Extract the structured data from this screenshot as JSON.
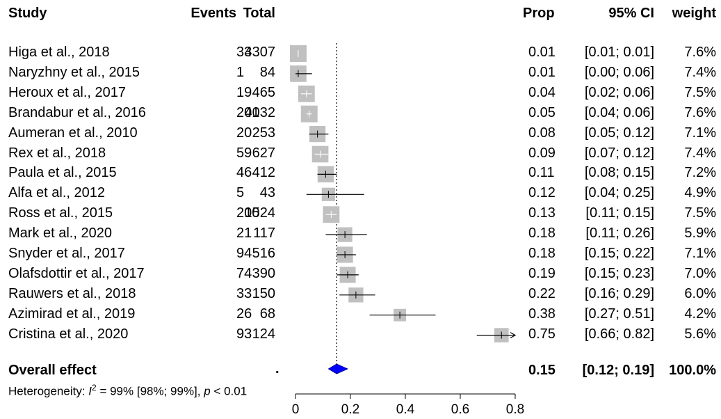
{
  "chart_data": {
    "type": "forest",
    "headers": {
      "study": "Study",
      "events": "Events",
      "total": "Total",
      "prop": "Prop",
      "ci": "95% CI",
      "weight": "weight"
    },
    "studies": [
      {
        "study": "Higa et al., 2018",
        "events": "33",
        "total": "4307",
        "prop_text": "0.01",
        "ci_text": "[0.01; 0.01]",
        "weight_text": "7.6%",
        "prop": 0.01,
        "lo": 0.01,
        "hi": 0.01,
        "weight": 7.6
      },
      {
        "study": "Naryzhny et al., 2015",
        "events": "1",
        "total": "84",
        "prop_text": "0.01",
        "ci_text": "[0.00; 0.06]",
        "weight_text": "7.4%",
        "prop": 0.01,
        "lo": 0.0,
        "hi": 0.06,
        "weight": 7.4
      },
      {
        "study": "Heroux et al., 2017",
        "events": "19",
        "total": "465",
        "prop_text": "0.04",
        "ci_text": "[0.02; 0.06]",
        "weight_text": "7.5%",
        "prop": 0.04,
        "lo": 0.02,
        "hi": 0.06,
        "weight": 7.5
      },
      {
        "study": "Brandabur et al., 2016",
        "events": "201",
        "total": "4032",
        "prop_text": "0.05",
        "ci_text": "[0.04; 0.06]",
        "weight_text": "7.6%",
        "prop": 0.05,
        "lo": 0.04,
        "hi": 0.06,
        "weight": 7.6
      },
      {
        "study": "Aumeran et al., 2010",
        "events": "20",
        "total": "253",
        "prop_text": "0.08",
        "ci_text": "[0.05; 0.12]",
        "weight_text": "7.1%",
        "prop": 0.08,
        "lo": 0.05,
        "hi": 0.12,
        "weight": 7.1
      },
      {
        "study": "Rex et al., 2018",
        "events": "59",
        "total": "627",
        "prop_text": "0.09",
        "ci_text": "[0.07; 0.12]",
        "weight_text": "7.4%",
        "prop": 0.09,
        "lo": 0.07,
        "hi": 0.12,
        "weight": 7.4
      },
      {
        "study": "Paula et al., 2015",
        "events": "46",
        "total": "412",
        "prop_text": "0.11",
        "ci_text": "[0.08; 0.15]",
        "weight_text": "7.2%",
        "prop": 0.11,
        "lo": 0.08,
        "hi": 0.15,
        "weight": 7.2
      },
      {
        "study": "Alfa et al., 2012",
        "events": "5",
        "total": "43",
        "prop_text": "0.12",
        "ci_text": "[0.04; 0.25]",
        "weight_text": "4.9%",
        "prop": 0.12,
        "lo": 0.04,
        "hi": 0.25,
        "weight": 4.9
      },
      {
        "study": "Ross et al., 2015",
        "events": "200",
        "total": "1524",
        "prop_text": "0.13",
        "ci_text": "[0.11; 0.15]",
        "weight_text": "7.5%",
        "prop": 0.13,
        "lo": 0.11,
        "hi": 0.15,
        "weight": 7.5
      },
      {
        "study": "Mark et al., 2020",
        "events": "21",
        "total": "117",
        "prop_text": "0.18",
        "ci_text": "[0.11; 0.26]",
        "weight_text": "5.9%",
        "prop": 0.18,
        "lo": 0.11,
        "hi": 0.26,
        "weight": 5.9
      },
      {
        "study": "Snyder et al., 2017",
        "events": "94",
        "total": "516",
        "prop_text": "0.18",
        "ci_text": "[0.15; 0.22]",
        "weight_text": "7.1%",
        "prop": 0.18,
        "lo": 0.15,
        "hi": 0.22,
        "weight": 7.1
      },
      {
        "study": "Olafsdottir et al., 2017",
        "events": "74",
        "total": "390",
        "prop_text": "0.19",
        "ci_text": "[0.15; 0.23]",
        "weight_text": "7.0%",
        "prop": 0.19,
        "lo": 0.15,
        "hi": 0.23,
        "weight": 7.0
      },
      {
        "study": "Rauwers et al., 2018",
        "events": "33",
        "total": "150",
        "prop_text": "0.22",
        "ci_text": "[0.16; 0.29]",
        "weight_text": "6.0%",
        "prop": 0.22,
        "lo": 0.16,
        "hi": 0.29,
        "weight": 6.0
      },
      {
        "study": "Azimirad et al., 2019",
        "events": "26",
        "total": "68",
        "prop_text": "0.38",
        "ci_text": "[0.27; 0.51]",
        "weight_text": "4.2%",
        "prop": 0.38,
        "lo": 0.27,
        "hi": 0.51,
        "weight": 4.2
      },
      {
        "study": "Cristina et al., 2020",
        "events": "93",
        "total": "124",
        "prop_text": "0.75",
        "ci_text": "[0.66; 0.82]",
        "weight_text": "5.6%",
        "prop": 0.75,
        "lo": 0.66,
        "hi": 0.82,
        "weight": 5.6
      }
    ],
    "overall": {
      "label": "Overall effect",
      "dot": ".",
      "prop_text": "0.15",
      "ci_text": "[0.12; 0.19]",
      "weight_text": "100.0%",
      "prop": 0.15,
      "lo": 0.12,
      "hi": 0.19
    },
    "heterogeneity": {
      "prefix": "Heterogeneity: ",
      "i_symbol": "I",
      "sup": "2",
      "middle": " = 99% [98%; 99%], ",
      "p_symbol": "p",
      "suffix": " < 0.01"
    },
    "xaxis": {
      "ticks": [
        0,
        0.2,
        0.4,
        0.6,
        0.8
      ],
      "tick_labels": [
        "0",
        "0.2",
        "0.4",
        "0.6",
        "0.8"
      ],
      "xlim": [
        0,
        0.8
      ]
    },
    "colors": {
      "box": "#c0c0c0",
      "diamond": "#0000ff",
      "line": "#000000"
    }
  }
}
